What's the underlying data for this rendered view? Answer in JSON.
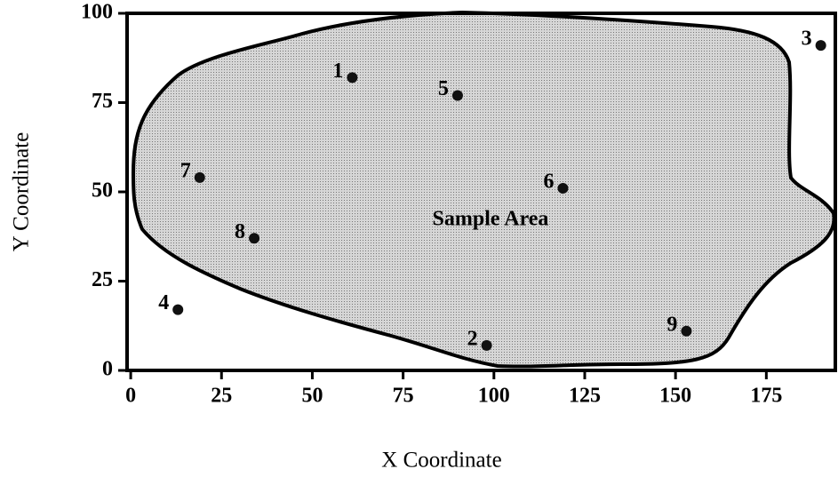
{
  "chart_data": {
    "type": "scatter",
    "xlabel": "X Coordinate",
    "ylabel": "Y Coordinate",
    "annotation": "Sample Area",
    "series": [
      {
        "color": "#111111",
        "labels": [
          "1",
          "2",
          "3",
          "4",
          "5",
          "6",
          "7",
          "8",
          "9"
        ],
        "x": [
          61,
          98,
          190,
          13,
          90,
          119,
          19,
          34,
          153
        ],
        "values": [
          82,
          7,
          91,
          17,
          77,
          51,
          54,
          37,
          11
        ]
      }
    ],
    "xlim": [
      -1,
      194
    ],
    "ylim": [
      0,
      100
    ],
    "xticks": [
      0,
      25,
      50,
      75,
      100,
      125,
      150,
      175
    ],
    "yticks": [
      0,
      25,
      50,
      75,
      100
    ]
  }
}
